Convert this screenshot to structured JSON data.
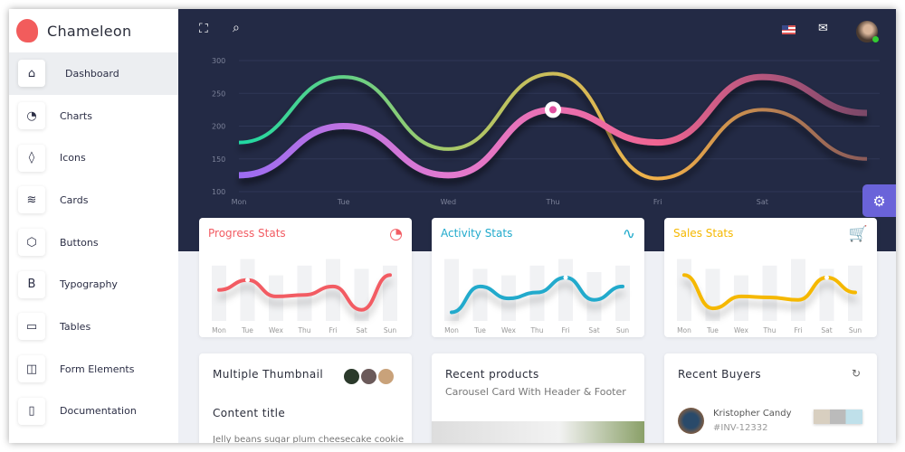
{
  "app": {
    "name": "Chameleon"
  },
  "sidebar": {
    "items": [
      {
        "label": "Dashboard",
        "icon": "home-icon",
        "glyph": "⌂",
        "active": true
      },
      {
        "label": "Charts",
        "icon": "pie-chart-icon",
        "glyph": "◔"
      },
      {
        "label": "Icons",
        "icon": "droplet-icon",
        "glyph": "◊"
      },
      {
        "label": "Cards",
        "icon": "layers-icon",
        "glyph": "≋"
      },
      {
        "label": "Buttons",
        "icon": "box-icon",
        "glyph": "⬡"
      },
      {
        "label": "Typography",
        "icon": "bold-icon",
        "glyph": "B"
      },
      {
        "label": "Tables",
        "icon": "credit-card-icon",
        "glyph": "▭"
      },
      {
        "label": "Form Elements",
        "icon": "layout-icon",
        "glyph": "◫"
      },
      {
        "label": "Documentation",
        "icon": "book-icon",
        "glyph": "▯"
      }
    ]
  },
  "topbar": {
    "icons": [
      "fullscreen-icon",
      "search-icon",
      "us-flag-icon",
      "mail-icon",
      "user-avatar"
    ]
  },
  "chart_data": [
    {
      "type": "line",
      "x": [
        "Mon",
        "Tue",
        "Wed",
        "Thu",
        "Fri",
        "Sat",
        ""
      ],
      "ylim": [
        100,
        300
      ],
      "yticks": [
        100,
        150,
        200,
        250,
        300
      ],
      "grid": true,
      "series": [
        {
          "values": [
            175,
            275,
            165,
            280,
            120,
            225,
            150
          ],
          "colors": [
            "#1fd8a3",
            "#a7c96a",
            "#f2b049",
            "#8a5a5a"
          ]
        },
        {
          "values": [
            125,
            200,
            125,
            225,
            175,
            275,
            220
          ],
          "colors": [
            "#9b6cf2",
            "#e27ad0",
            "#f06592",
            "#7a4868"
          ],
          "highlight_index": 3
        }
      ]
    },
    {
      "type": "line",
      "title": "Progress Stats",
      "color": "#f25c63",
      "x": [
        "Mon",
        "Tue",
        "Wex",
        "Thu",
        "Fri",
        "Sat",
        "Sun"
      ],
      "values": [
        55,
        75,
        42,
        45,
        62,
        15,
        85
      ],
      "bars": [
        85,
        95,
        70,
        85,
        95,
        80,
        85
      ],
      "highlight_index": 1
    },
    {
      "type": "line",
      "title": "Activity Stats",
      "color": "#21aacc",
      "x": [
        "Mon",
        "Tue",
        "Wex",
        "Thu",
        "Fri",
        "Sat",
        "Sun"
      ],
      "values": [
        10,
        62,
        38,
        50,
        80,
        35,
        62
      ],
      "bars": [
        95,
        80,
        70,
        85,
        95,
        75,
        85
      ],
      "highlight_index": 4
    },
    {
      "type": "line",
      "title": "Sales Stats",
      "color": "#f5b800",
      "x": [
        "Mon",
        "Tue",
        "Wex",
        "Thu",
        "Fri",
        "Sat",
        "Sun"
      ],
      "values": [
        85,
        18,
        42,
        40,
        35,
        80,
        50
      ],
      "bars": [
        95,
        80,
        70,
        85,
        95,
        80,
        85
      ],
      "highlight_index": 5
    }
  ],
  "cards": {
    "thumbnail": {
      "title": "Multiple Thumbnail",
      "content_title": "Content title",
      "text": "Jelly beans sugar plum cheesecake cookie"
    },
    "products": {
      "title": "Recent products",
      "subtitle": "Carousel Card With Header & Footer"
    },
    "buyers": {
      "title": "Recent Buyers",
      "name": "Kristopher Candy",
      "invoice": "#INV-12332"
    }
  },
  "colors": {
    "sidebar_bg": "#ffffff",
    "header_bg": "#232a45",
    "accent": "#6a63d9",
    "brand": "#f25c5c"
  }
}
